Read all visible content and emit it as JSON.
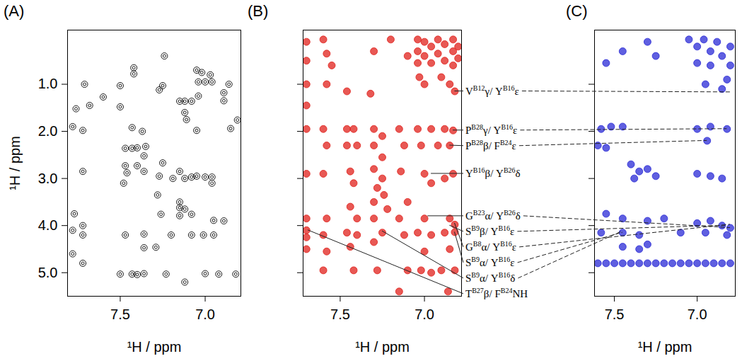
{
  "chart_data": [
    {
      "type": "scatter",
      "title": "(A)",
      "x_label": "¹H / ppm",
      "y_label": "¹H / ppm",
      "xlim": [
        7.81,
        6.79
      ],
      "ylim": [
        -0.15,
        5.5
      ],
      "xticks": [
        7.5,
        {
          "value": 7,
          "label": "7.0"
        }
      ],
      "yticks": [
        {
          "value": 1,
          "label": "1.0"
        },
        {
          "value": 2,
          "label": "2.0"
        },
        {
          "value": 3,
          "label": "3.0"
        },
        {
          "value": 4,
          "label": "4.0"
        },
        {
          "value": 5,
          "label": "5.0"
        }
      ],
      "color": "#1a1a1a",
      "marker": "ring",
      "points": [
        [
          7.71,
          1.0
        ],
        [
          7.68,
          1.45
        ],
        [
          7.76,
          1.52
        ],
        [
          7.78,
          1.9
        ],
        [
          7.72,
          1.98
        ],
        [
          7.72,
          2.85
        ],
        [
          7.77,
          3.75
        ],
        [
          7.78,
          4.1
        ],
        [
          7.72,
          4.0
        ],
        [
          7.72,
          4.2
        ],
        [
          7.78,
          4.6
        ],
        [
          7.72,
          4.8
        ],
        [
          7.6,
          1.27
        ],
        [
          7.5,
          1.03
        ],
        [
          7.5,
          1.48
        ],
        [
          7.42,
          0.65
        ],
        [
          7.42,
          0.78
        ],
        [
          7.43,
          1.92
        ],
        [
          7.47,
          2.36
        ],
        [
          7.43,
          2.36
        ],
        [
          7.4,
          2.35
        ],
        [
          7.35,
          2.32
        ],
        [
          7.36,
          2.52
        ],
        [
          7.4,
          2.73
        ],
        [
          7.47,
          2.73
        ],
        [
          7.46,
          2.88
        ],
        [
          7.36,
          2.85
        ],
        [
          7.25,
          2.67
        ],
        [
          7.27,
          2.95
        ],
        [
          7.28,
          3.35
        ],
        [
          7.15,
          2.85
        ],
        [
          7.19,
          3.0
        ],
        [
          7.12,
          3.0
        ],
        [
          7.08,
          2.97
        ],
        [
          7.05,
          2.95
        ],
        [
          7.0,
          2.97
        ],
        [
          6.96,
          2.97
        ],
        [
          6.96,
          3.1
        ],
        [
          7.15,
          3.5
        ],
        [
          7.15,
          3.62
        ],
        [
          7.12,
          3.65
        ],
        [
          7.15,
          1.36
        ],
        [
          7.12,
          1.36
        ],
        [
          7.08,
          1.36
        ],
        [
          7.04,
          1.25
        ],
        [
          7.12,
          1.6
        ],
        [
          7.11,
          1.75
        ],
        [
          7.37,
          2.0
        ],
        [
          7.25,
          1.03
        ],
        [
          7.27,
          1.12
        ],
        [
          7.47,
          4.2
        ],
        [
          7.36,
          4.18
        ],
        [
          7.08,
          4.2
        ],
        [
          7.01,
          4.2
        ],
        [
          6.95,
          4.2
        ],
        [
          7.2,
          4.2
        ],
        [
          7.36,
          4.47
        ],
        [
          7.29,
          4.46
        ],
        [
          7.5,
          5.03
        ],
        [
          7.43,
          5.03
        ],
        [
          7.4,
          5.04
        ],
        [
          7.36,
          5.02
        ],
        [
          7.23,
          5.03
        ],
        [
          7.0,
          5.02
        ],
        [
          6.92,
          5.03
        ],
        [
          6.82,
          5.03
        ],
        [
          7.12,
          5.2
        ],
        [
          7.05,
          1.98
        ],
        [
          6.85,
          1.94
        ],
        [
          6.81,
          1.76
        ],
        [
          6.89,
          1.35
        ],
        [
          6.89,
          1.18
        ],
        [
          7.24,
          0.4
        ],
        [
          6.89,
          3.9
        ],
        [
          6.95,
          3.89
        ],
        [
          7.26,
          3.76
        ],
        [
          7.15,
          3.79
        ],
        [
          7.08,
          3.76
        ],
        [
          7.48,
          3.1
        ],
        [
          7.05,
          0.7
        ],
        [
          7.02,
          0.75
        ],
        [
          6.97,
          0.8
        ],
        [
          7.04,
          0.95
        ],
        [
          7.0,
          0.95
        ],
        [
          6.96,
          0.95
        ],
        [
          6.86,
          1.0
        ]
      ]
    },
    {
      "type": "scatter",
      "title": "(B)",
      "x_label": "¹H / ppm",
      "xlim": [
        7.72,
        6.78
      ],
      "ylim": [
        -0.15,
        5.5
      ],
      "xticks": [
        7.5,
        {
          "value": 7,
          "label": "7.0"
        }
      ],
      "yticks": [
        1,
        2,
        3,
        4,
        5
      ],
      "tick_labels": "x",
      "color": "#e0201b",
      "marker": "circle",
      "points": [
        [
          7.04,
          0.05
        ],
        [
          7.04,
          0.3
        ],
        [
          7.04,
          0.55
        ],
        [
          7.0,
          0.1
        ],
        [
          7.0,
          0.4
        ],
        [
          6.96,
          0.2
        ],
        [
          6.96,
          0.55
        ],
        [
          6.92,
          0.05
        ],
        [
          6.92,
          0.35
        ],
        [
          6.88,
          0.15
        ],
        [
          6.88,
          0.5
        ],
        [
          6.83,
          0.05
        ],
        [
          6.83,
          0.3
        ],
        [
          6.83,
          0.6
        ],
        [
          6.8,
          0.2
        ],
        [
          6.8,
          0.45
        ],
        [
          7.6,
          0.05
        ],
        [
          7.58,
          0.35
        ],
        [
          7.55,
          0.6
        ],
        [
          7.3,
          0.3
        ],
        [
          7.2,
          0.05
        ],
        [
          7.1,
          0.4
        ],
        [
          7.7,
          0.1
        ],
        [
          7.7,
          0.5
        ],
        [
          7.7,
          1.0
        ],
        [
          7.7,
          1.45
        ],
        [
          7.7,
          1.95
        ],
        [
          7.7,
          2.9
        ],
        [
          7.7,
          3.85
        ],
        [
          7.7,
          4.1
        ],
        [
          7.7,
          4.25
        ],
        [
          7.7,
          4.5
        ],
        [
          7.58,
          1.0
        ],
        [
          7.6,
          1.95
        ],
        [
          7.58,
          2.3
        ],
        [
          7.6,
          2.9
        ],
        [
          7.58,
          3.85
        ],
        [
          7.6,
          4.2
        ],
        [
          7.58,
          4.55
        ],
        [
          7.6,
          4.95
        ],
        [
          7.46,
          1.95
        ],
        [
          7.42,
          1.95
        ],
        [
          7.46,
          2.3
        ],
        [
          7.4,
          2.3
        ],
        [
          7.44,
          2.85
        ],
        [
          7.42,
          3.1
        ],
        [
          7.44,
          3.6
        ],
        [
          7.4,
          3.85
        ],
        [
          7.46,
          4.15
        ],
        [
          7.4,
          4.2
        ],
        [
          7.44,
          4.45
        ],
        [
          7.42,
          4.95
        ],
        [
          7.46,
          1.15
        ],
        [
          7.32,
          1.2
        ],
        [
          7.3,
          1.95
        ],
        [
          7.25,
          2.1
        ],
        [
          7.3,
          2.3
        ],
        [
          7.25,
          2.55
        ],
        [
          7.3,
          2.8
        ],
        [
          7.25,
          3.0
        ],
        [
          7.28,
          3.2
        ],
        [
          7.24,
          3.35
        ],
        [
          7.3,
          3.5
        ],
        [
          7.22,
          3.65
        ],
        [
          7.3,
          3.85
        ],
        [
          7.25,
          4.15
        ],
        [
          7.3,
          4.35
        ],
        [
          7.28,
          4.95
        ],
        [
          7.15,
          1.95
        ],
        [
          7.12,
          2.3
        ],
        [
          7.14,
          2.85
        ],
        [
          7.1,
          3.5
        ],
        [
          7.15,
          3.85
        ],
        [
          7.12,
          4.2
        ],
        [
          7.1,
          4.95
        ],
        [
          7.15,
          5.4
        ],
        [
          7.03,
          0.85
        ],
        [
          7.0,
          1.0
        ],
        [
          6.96,
          1.95
        ],
        [
          7.04,
          1.95
        ],
        [
          7.02,
          2.3
        ],
        [
          7.0,
          2.9
        ],
        [
          6.96,
          3.1
        ],
        [
          7.0,
          3.85
        ],
        [
          7.04,
          4.15
        ],
        [
          6.96,
          4.2
        ],
        [
          7.0,
          4.55
        ],
        [
          7.02,
          4.95
        ],
        [
          6.96,
          5.0
        ],
        [
          6.9,
          0.85
        ],
        [
          6.85,
          1.0
        ],
        [
          6.82,
          1.15
        ],
        [
          6.88,
          1.95
        ],
        [
          6.83,
          1.98
        ],
        [
          6.92,
          2.3
        ],
        [
          6.85,
          2.3
        ],
        [
          6.83,
          2.9
        ],
        [
          6.88,
          3.0
        ],
        [
          6.85,
          3.85
        ],
        [
          6.82,
          3.98
        ],
        [
          6.88,
          4.15
        ],
        [
          6.82,
          4.14
        ],
        [
          6.85,
          4.5
        ],
        [
          6.9,
          4.95
        ],
        [
          6.82,
          4.95
        ],
        [
          6.86,
          5.4
        ]
      ],
      "annotations": [
        {
          "label": [
            {
              "text": "V",
              "sup": "B12"
            },
            {
              "text": "γ/ Y",
              "sup": "B16"
            },
            {
              "text": "ε"
            }
          ],
          "target": [
            6.82,
            1.15
          ],
          "target_C": [
            6.8,
            1.17
          ]
        },
        {
          "label": [
            {
              "text": "P",
              "sup": "B28"
            },
            {
              "text": "γ/ Y",
              "sup": "B16"
            },
            {
              "text": "ε"
            }
          ],
          "target": [
            6.83,
            1.98
          ],
          "target_C": [
            6.82,
            1.95
          ]
        },
        {
          "label": [
            {
              "text": "P",
              "sup": "B28"
            },
            {
              "text": "β/ F",
              "sup": "B24"
            },
            {
              "text": "ε"
            }
          ],
          "target": [
            6.85,
            2.3
          ],
          "target_C": [
            6.94,
            2.2
          ]
        },
        {
          "label": [
            {
              "text": "Y",
              "sup": "B16"
            },
            {
              "text": "β/ Y",
              "sup": "B26"
            },
            {
              "text": "δ"
            }
          ],
          "target": [
            6.96,
            2.9
          ]
        },
        {
          "label": [
            {
              "text": "G",
              "sup": "B23"
            },
            {
              "text": "α/ Y",
              "sup": "B26"
            },
            {
              "text": "δ"
            }
          ],
          "target": [
            6.98,
            3.8
          ],
          "target_C": [
            6.8,
            4.05
          ]
        },
        {
          "label": [
            {
              "text": "S",
              "sup": "B9"
            },
            {
              "text": "β/ Y",
              "sup": "B16"
            },
            {
              "text": "ε"
            }
          ],
          "target": [
            6.85,
            4.0
          ],
          "target_C": [
            6.82,
            4.0
          ]
        },
        {
          "label": [
            {
              "text": "G",
              "sup": "B8"
            },
            {
              "text": "α/ Y",
              "sup": "B16"
            },
            {
              "text": "ε"
            }
          ],
          "target": [
            6.82,
            3.95
          ],
          "target_C": [
            6.8,
            3.98
          ]
        },
        {
          "label": [
            {
              "text": "S",
              "sup": "B9"
            },
            {
              "text": "α/ Y",
              "sup": "B16"
            },
            {
              "text": "ε"
            }
          ],
          "target": [
            6.82,
            4.14
          ],
          "target_C": [
            7.45,
            4.15
          ]
        },
        {
          "label": [
            {
              "text": "S",
              "sup": "B9"
            },
            {
              "text": "α/ Y",
              "sup": "B16"
            },
            {
              "text": "δ"
            }
          ],
          "target": [
            7.25,
            4.12
          ],
          "target_C": [
            7.45,
            4.12
          ]
        },
        {
          "label": [
            {
              "text": "T",
              "sup": "B27"
            },
            {
              "text": "β/ F",
              "sup": "B24"
            },
            {
              "text": "NH"
            }
          ],
          "target": [
            7.69,
            4.1
          ]
        }
      ]
    },
    {
      "type": "scatter",
      "title": "(C)",
      "x_label": "¹H / ppm",
      "xlim": [
        7.62,
        6.77
      ],
      "ylim": [
        -0.15,
        5.5
      ],
      "xticks": [
        7.5,
        {
          "value": 7,
          "label": "7.0"
        }
      ],
      "yticks": [
        1,
        2,
        3,
        4,
        5
      ],
      "tick_labels": "x",
      "color": "#2a2ad6",
      "marker": "circle",
      "points": [
        [
          7.05,
          0.05
        ],
        [
          7.0,
          0.2
        ],
        [
          6.96,
          0.05
        ],
        [
          6.92,
          0.3
        ],
        [
          6.88,
          0.1
        ],
        [
          6.85,
          0.4
        ],
        [
          6.8,
          0.2
        ],
        [
          6.8,
          0.6
        ],
        [
          6.92,
          0.6
        ],
        [
          7.0,
          0.55
        ],
        [
          7.3,
          0.1
        ],
        [
          7.25,
          0.4
        ],
        [
          7.45,
          0.3
        ],
        [
          7.55,
          0.55
        ],
        [
          6.95,
          1.0
        ],
        [
          6.85,
          1.1
        ],
        [
          6.82,
          0.9
        ],
        [
          7.58,
          1.95
        ],
        [
          7.52,
          1.9
        ],
        [
          7.45,
          1.9
        ],
        [
          7.0,
          1.95
        ],
        [
          6.92,
          1.9
        ],
        [
          6.82,
          1.95
        ],
        [
          7.6,
          2.3
        ],
        [
          7.55,
          2.35
        ],
        [
          6.94,
          2.2
        ],
        [
          7.4,
          2.7
        ],
        [
          7.35,
          2.85
        ],
        [
          7.3,
          2.8
        ],
        [
          7.25,
          2.95
        ],
        [
          7.38,
          3.0
        ],
        [
          7.0,
          2.9
        ],
        [
          6.92,
          2.95
        ],
        [
          6.85,
          3.0
        ],
        [
          7.55,
          3.75
        ],
        [
          7.45,
          3.85
        ],
        [
          7.3,
          3.9
        ],
        [
          7.2,
          3.85
        ],
        [
          7.0,
          3.95
        ],
        [
          6.92,
          3.9
        ],
        [
          6.85,
          4.0
        ],
        [
          6.8,
          4.05
        ],
        [
          7.58,
          4.15
        ],
        [
          7.45,
          4.15
        ],
        [
          7.35,
          4.2
        ],
        [
          7.1,
          4.15
        ],
        [
          6.95,
          4.15
        ],
        [
          6.82,
          4.2
        ],
        [
          7.45,
          4.45
        ],
        [
          7.35,
          4.5
        ],
        [
          7.3,
          4.4
        ],
        [
          7.6,
          4.8
        ],
        [
          7.55,
          4.8
        ],
        [
          7.5,
          4.8
        ],
        [
          7.45,
          4.8
        ],
        [
          7.4,
          4.8
        ],
        [
          7.35,
          4.8
        ],
        [
          7.3,
          4.8
        ],
        [
          7.25,
          4.8
        ],
        [
          7.2,
          4.8
        ],
        [
          7.15,
          4.8
        ],
        [
          7.1,
          4.8
        ],
        [
          7.05,
          4.8
        ],
        [
          7.0,
          4.8
        ],
        [
          6.95,
          4.8
        ],
        [
          6.9,
          4.8
        ],
        [
          6.85,
          4.8
        ],
        [
          6.8,
          4.8
        ]
      ]
    }
  ]
}
